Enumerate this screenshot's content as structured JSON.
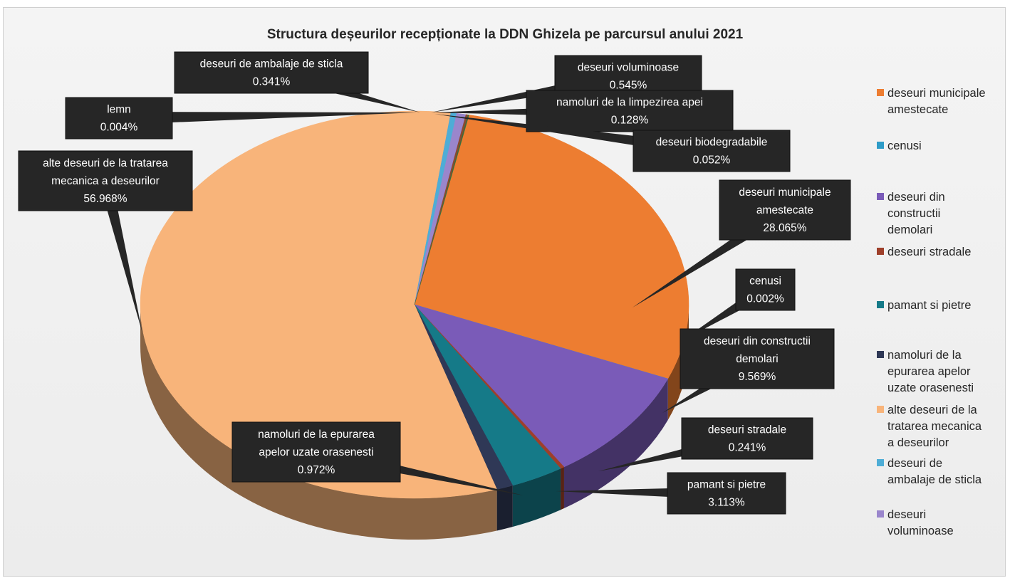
{
  "chart_data": {
    "type": "pie",
    "title": "Structura deșeurilor recepționate la DDN Ghizela pe parcursul anului 2021",
    "unit": "%",
    "legend_position": "right",
    "slices": [
      {
        "name": "deseuri municipale amestecate",
        "value": 28.065,
        "label": "28.065%",
        "color": "#ed7d31"
      },
      {
        "name": "cenusi",
        "value": 0.002,
        "label": "0.002%",
        "color": "#2e9cc8"
      },
      {
        "name": "deseuri din constructii demolari",
        "value": 9.569,
        "label": "9.569%",
        "color": "#7a5bb8"
      },
      {
        "name": "deseuri stradale",
        "value": 0.241,
        "label": "0.241%",
        "color": "#9e3f2a"
      },
      {
        "name": "pamant si pietre",
        "value": 3.113,
        "label": "3.113%",
        "color": "#157a88"
      },
      {
        "name": "namoluri de la epurarea apelor uzate orasenesti",
        "value": 0.972,
        "label": "0.972%",
        "color": "#2f3856"
      },
      {
        "name": "alte deseuri de la tratarea mecanica a deseurilor",
        "value": 56.968,
        "label": "56.968%",
        "color": "#f8b47a"
      },
      {
        "name": "lemn",
        "value": 0.004,
        "label": "0.004%",
        "color": "#9c9c9c"
      },
      {
        "name": "deseuri de ambalaje de sticla",
        "value": 0.341,
        "label": "0.341%",
        "color": "#4eadd6"
      },
      {
        "name": "deseuri voluminoase",
        "value": 0.545,
        "label": "0.545%",
        "color": "#9a86cc"
      },
      {
        "name": "namoluri de la limpezirea apei",
        "value": 0.128,
        "label": "0.128%",
        "color": "#8a4a2e"
      },
      {
        "name": "deseuri biodegradabile",
        "value": 0.052,
        "label": "0.052%",
        "color": "#3b6e3b"
      }
    ],
    "data_labels": [
      {
        "slice": 0,
        "lines": [
          "deseuri municipale",
          "amestecate",
          "28.065%"
        ]
      },
      {
        "slice": 1,
        "lines": [
          "cenusi",
          "0.002%"
        ]
      },
      {
        "slice": 2,
        "lines": [
          "deseuri din constructii",
          "demolari",
          "9.569%"
        ]
      },
      {
        "slice": 3,
        "lines": [
          "deseuri stradale",
          "0.241%"
        ]
      },
      {
        "slice": 4,
        "lines": [
          "pamant si pietre",
          "3.113%"
        ]
      },
      {
        "slice": 5,
        "lines": [
          "namoluri de la epurarea",
          "apelor uzate orasenesti",
          "0.972%"
        ]
      },
      {
        "slice": 6,
        "lines": [
          "alte deseuri de la tratarea",
          "mecanica a deseurilor",
          "56.968%"
        ]
      },
      {
        "slice": 7,
        "lines": [
          "lemn",
          "0.004%"
        ]
      },
      {
        "slice": 8,
        "lines": [
          "deseuri de ambalaje de sticla",
          "0.341%"
        ]
      },
      {
        "slice": 9,
        "lines": [
          "deseuri voluminoase",
          "0.545%"
        ]
      },
      {
        "slice": 10,
        "lines": [
          "namoluri de la limpezirea apei",
          "0.128%"
        ]
      },
      {
        "slice": 11,
        "lines": [
          "deseuri biodegradabile",
          "0.052%"
        ]
      }
    ],
    "legend": [
      {
        "lines": [
          "deseuri municipale",
          "amestecate"
        ],
        "color": "#ed7d31"
      },
      {
        "lines": [
          "cenusi"
        ],
        "color": "#2e9cc8"
      },
      {
        "lines": [
          "deseuri din",
          "constructii",
          "demolari"
        ],
        "color": "#7a5bb8"
      },
      {
        "lines": [
          "deseuri stradale"
        ],
        "color": "#9e3f2a"
      },
      {
        "lines": [
          "pamant si pietre"
        ],
        "color": "#157a88"
      },
      {
        "lines": [
          "namoluri de la",
          "epurarea apelor",
          "uzate orasenesti"
        ],
        "color": "#2f3856"
      },
      {
        "lines": [
          "alte deseuri de la",
          "tratarea mecanica",
          "a deseurilor"
        ],
        "color": "#f8b47a"
      },
      {
        "lines": [
          "deseuri de",
          "ambalaje de sticla"
        ],
        "color": "#4eadd6"
      },
      {
        "lines": [
          "deseuri",
          "voluminoase"
        ],
        "color": "#9a86cc"
      }
    ]
  }
}
